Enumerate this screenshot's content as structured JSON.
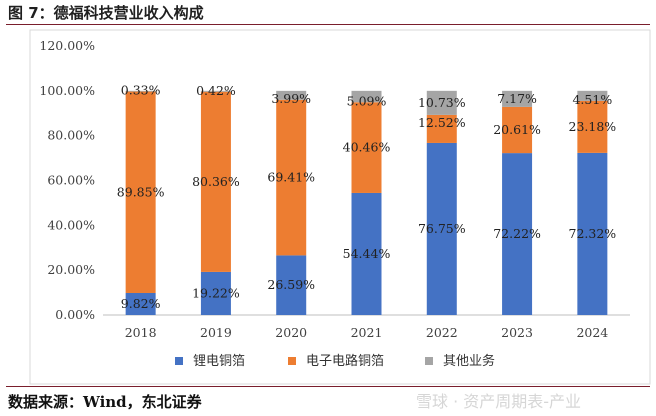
{
  "header": {
    "title": "图 7：德福科技营业收入构成"
  },
  "footer": {
    "source": "数据来源：Wind，东北证券",
    "watermark": "雪球 · 资产周期表-产业"
  },
  "chart_data": {
    "type": "bar",
    "stacked": true,
    "title": "",
    "categories": [
      "2018",
      "2019",
      "2020",
      "2021",
      "2022",
      "2023",
      "2024"
    ],
    "series": [
      {
        "name": "锂电铜箔",
        "color": "#4472c4",
        "values": [
          9.82,
          19.22,
          26.59,
          54.44,
          76.75,
          72.22,
          72.32
        ],
        "labels": [
          "9.82%",
          "19.22%",
          "26.59%",
          "54.44%",
          "76.75%",
          "72.22%",
          "72.32%"
        ]
      },
      {
        "name": "电子电路铜箔",
        "color": "#ed7d31",
        "values": [
          89.85,
          80.36,
          69.41,
          40.46,
          12.52,
          20.61,
          23.18
        ],
        "labels": [
          "89.85%",
          "80.36%",
          "69.41%",
          "40.46%",
          "12.52%",
          "20.61%",
          "23.18%"
        ]
      },
      {
        "name": "其他业务",
        "color": "#a5a5a5",
        "values": [
          0.33,
          0.42,
          3.99,
          5.09,
          10.73,
          7.17,
          4.51
        ],
        "labels": [
          "0.33%",
          "0.42%",
          "3.99%",
          "5.09%",
          "10.73%",
          "7.17%",
          "4.51%"
        ]
      }
    ],
    "ylim": [
      0,
      120
    ],
    "yticks": [
      "0.00%",
      "20.00%",
      "40.00%",
      "60.00%",
      "80.00%",
      "100.00%",
      "120.00%"
    ],
    "legend_position": "bottom",
    "grid": false
  }
}
